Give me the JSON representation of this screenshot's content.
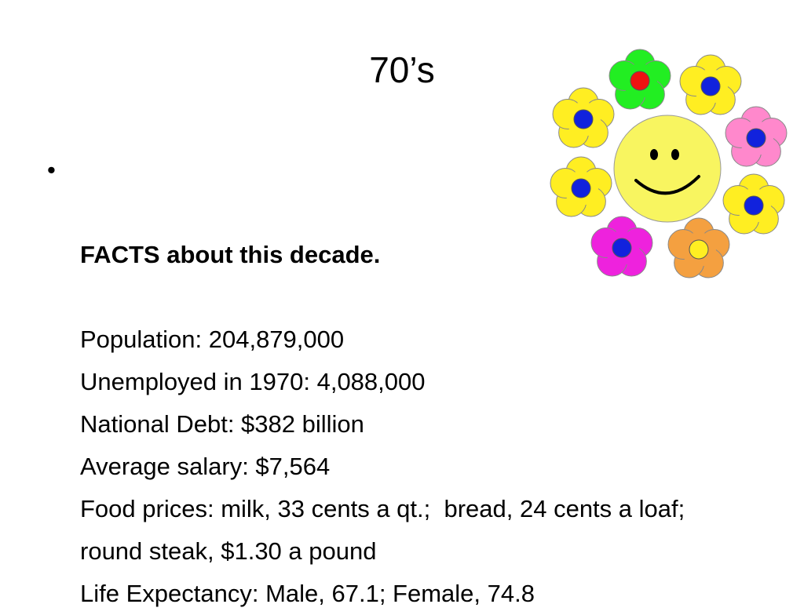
{
  "title": "70’s",
  "bullet": {
    "heading": "FACTS about this decade.",
    "lines": [
      "Population: 204,879,000",
      "Unemployed in 1970: 4,088,000",
      "National Debt: $382 billion",
      "Average salary: $7,564",
      "Food prices: milk, 33 cents a qt.;  bread, 24 cents a loaf; round steak, $1.30 a pound",
      "Life Expectancy: Male, 67.1; Female, 74.8"
    ]
  }
}
